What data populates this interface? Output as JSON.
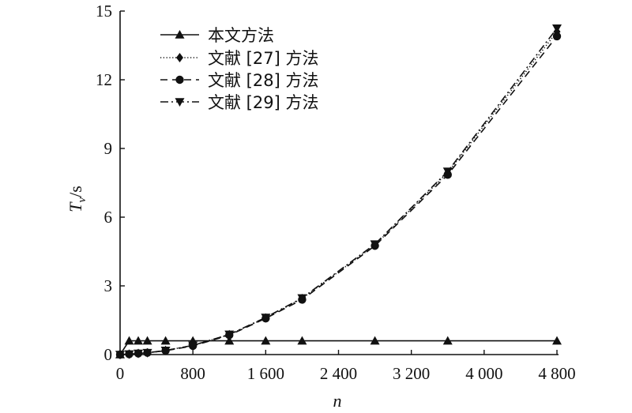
{
  "chart_data": {
    "type": "line",
    "title": "",
    "xlabel": "n",
    "ylabel_main": "T",
    "ylabel_sub": "v",
    "ylabel_unit": "/s",
    "xlim": [
      0,
      4800
    ],
    "ylim": [
      0,
      15
    ],
    "x_ticks": [
      0,
      800,
      1600,
      2400,
      3200,
      4000,
      4800
    ],
    "x_tick_labels": [
      "0",
      "800",
      "1 600",
      "2 400",
      "3 200",
      "4 000",
      "4 800"
    ],
    "y_ticks": [
      0,
      3,
      6,
      9,
      12,
      15
    ],
    "y_tick_labels": [
      "0",
      "3",
      "6",
      "9",
      "12",
      "15"
    ],
    "grid": false,
    "legend_position": "top-left",
    "series": [
      {
        "name": "本文方法",
        "marker": "triangle-up",
        "dash": "solid",
        "x": [
          0,
          100,
          200,
          300,
          500,
          800,
          1200,
          1600,
          2000,
          2800,
          3600,
          4800
        ],
        "y": [
          0,
          0.6,
          0.6,
          0.6,
          0.6,
          0.6,
          0.6,
          0.6,
          0.6,
          0.6,
          0.6,
          0.6
        ]
      },
      {
        "name": "文献 [27] 方法",
        "marker": "diamond",
        "dash": "dotted",
        "x": [
          0,
          100,
          200,
          300,
          500,
          800,
          1200,
          1600,
          2000,
          2800,
          3600,
          4800
        ],
        "y": [
          0,
          0.02,
          0.05,
          0.08,
          0.18,
          0.4,
          0.87,
          1.6,
          2.45,
          4.78,
          7.95,
          14.1
        ]
      },
      {
        "name": "文献 [28] 方法",
        "marker": "circle",
        "dash": "dashed",
        "x": [
          0,
          100,
          200,
          300,
          500,
          800,
          1200,
          1600,
          2000,
          2800,
          3600,
          4800
        ],
        "y": [
          0,
          0.02,
          0.05,
          0.08,
          0.17,
          0.38,
          0.85,
          1.58,
          2.4,
          4.75,
          7.85,
          13.9
        ]
      },
      {
        "name": "文献 [29] 方法",
        "marker": "triangle-down",
        "dash": "dashdot",
        "x": [
          0,
          100,
          200,
          300,
          500,
          800,
          1200,
          1600,
          2000,
          2800,
          3600,
          4800
        ],
        "y": [
          0,
          0.02,
          0.05,
          0.08,
          0.18,
          0.4,
          0.88,
          1.62,
          2.47,
          4.82,
          8.0,
          14.25
        ]
      }
    ]
  }
}
